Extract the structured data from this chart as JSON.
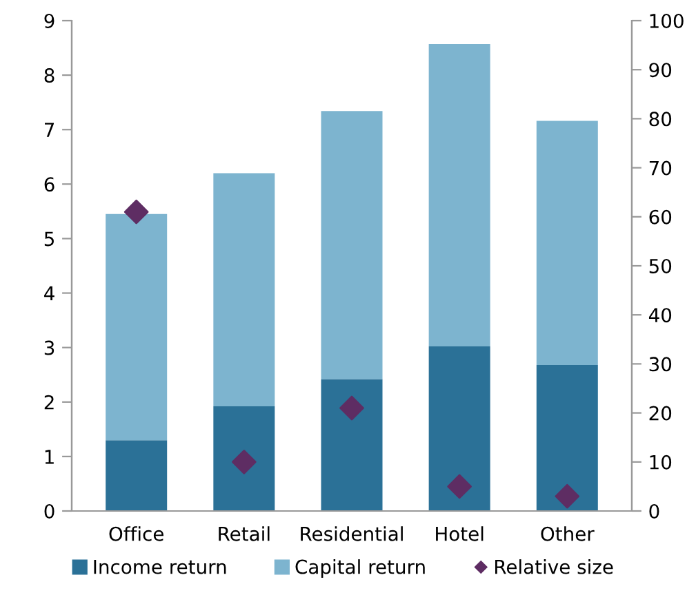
{
  "chart_data": {
    "type": "bar",
    "stacked": true,
    "categories": [
      "Office",
      "Retail",
      "Residential",
      "Hotel",
      "Other"
    ],
    "series": [
      {
        "name": "Income return",
        "color": "#2b7197",
        "values": [
          1.3,
          1.92,
          2.42,
          3.02,
          2.68
        ]
      },
      {
        "name": "Capital return",
        "color": "#7db4cf",
        "values": [
          4.15,
          4.28,
          4.92,
          5.55,
          4.48
        ]
      },
      {
        "name": "Relative size",
        "type": "scatter",
        "axis": "y2",
        "marker": "diamond",
        "color": "#5e2d63",
        "values": [
          61,
          10,
          21,
          5,
          3
        ]
      }
    ],
    "ylim": [
      0,
      9
    ],
    "yticks": [
      0,
      1,
      2,
      3,
      4,
      5,
      6,
      7,
      8,
      9
    ],
    "y2lim": [
      0,
      100
    ],
    "y2ticks": [
      0,
      10,
      20,
      30,
      40,
      50,
      60,
      70,
      80,
      90,
      100
    ],
    "grid": false,
    "legend": "bottom"
  }
}
